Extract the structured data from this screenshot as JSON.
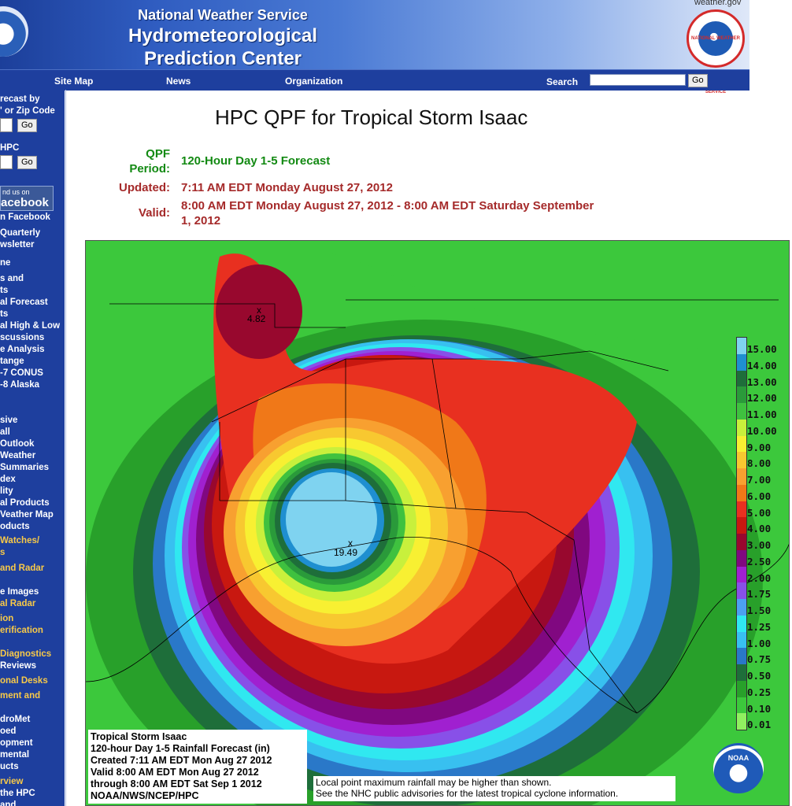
{
  "header": {
    "line1": "National Weather Service",
    "line2": "Hydrometeorological",
    "line3": "Prediction Center",
    "weather_gov_link": "weather.gov",
    "seal_text": "NATIONAL WEATHER SERVICE"
  },
  "nav": {
    "site_map": "Site Map",
    "news": "News",
    "organization": "Organization",
    "search_label": "Search",
    "search_value": "",
    "go": "Go"
  },
  "sidebar": {
    "forecast_zip_line1": "recast by",
    "forecast_zip_line2": "' or Zip Code",
    "go": "Go",
    "hpc_label": "HPC",
    "facebook_small": "nd us on",
    "facebook_big": "acebook",
    "items": [
      "n Facebook",
      "Quarterly",
      "wsletter",
      "ne",
      "s and",
      "ts",
      "al Forecast",
      "ts",
      "al High & Low",
      "scussions",
      "e Analysis",
      "tange",
      "-7 CONUS",
      "-8 Alaska",
      "sive",
      "all",
      "Outlook",
      "Weather",
      "Summaries",
      "dex",
      "lity",
      "al Products",
      "Veather Map",
      "oducts",
      "Watches/",
      "s",
      "and Radar",
      "e Images",
      "al Radar",
      "ion",
      "erification",
      "Diagnostics",
      "Reviews",
      "onal Desks",
      "ment and",
      "droMet",
      "oed",
      "opment",
      "mental",
      "ucts",
      "rview",
      "the HPC",
      "and"
    ]
  },
  "main": {
    "title": "HPC QPF for Tropical Storm Isaac",
    "qpf_period_label": "QPF Period:",
    "qpf_period_value": "120-Hour Day 1-5 Forecast",
    "updated_label": "Updated:",
    "updated_value": "7:11 AM EDT Monday August 27, 2012",
    "valid_label": "Valid:",
    "valid_value_line1": "8:00 AM EDT Monday August 27, 2012 - 8:00 AM EDT Saturday September",
    "valid_value_line2": "1, 2012"
  },
  "map": {
    "max1_label": "4.82",
    "max2_label": "19.49",
    "caption": [
      "Tropical Storm Isaac",
      "120-hour Day 1-5 Rainfall Forecast (in)",
      "Created 7:11 AM EDT Mon Aug 27 2012",
      "Valid 8:00 AM EDT Mon Aug 27 2012",
      "through 8:00 AM EDT Sat Sep 1 2012",
      "NOAA/NWS/NCEP/HPC"
    ],
    "note_line1": "Local point maximum rainfall may be higher than shown.",
    "note_line2": "See the NHC public advisories for the latest tropical cyclone information.",
    "noaa_seal_text": "NOAA",
    "legend": [
      {
        "label": "15.00",
        "color": "#7fd3f0"
      },
      {
        "label": "14.00",
        "color": "#1f8fd0"
      },
      {
        "label": "13.00",
        "color": "#1e6e3a"
      },
      {
        "label": "12.00",
        "color": "#2a9a3a"
      },
      {
        "label": "11.00",
        "color": "#3fc13f"
      },
      {
        "label": "10.00",
        "color": "#c8f03c"
      },
      {
        "label": "9.00",
        "color": "#f8f032"
      },
      {
        "label": "8.00",
        "color": "#f8c830"
      },
      {
        "label": "7.00",
        "color": "#f8a030"
      },
      {
        "label": "6.00",
        "color": "#f07818"
      },
      {
        "label": "5.00",
        "color": "#e83020"
      },
      {
        "label": "4.00",
        "color": "#c81810"
      },
      {
        "label": "3.00",
        "color": "#98082e"
      },
      {
        "label": "2.50",
        "color": "#800880"
      },
      {
        "label": "2.00",
        "color": "#a020d0"
      },
      {
        "label": "1.75",
        "color": "#8850e8"
      },
      {
        "label": "1.50",
        "color": "#4ca0f0"
      },
      {
        "label": "1.25",
        "color": "#30e8f0"
      },
      {
        "label": "1.00",
        "color": "#38c0f0"
      },
      {
        "label": "0.75",
        "color": "#2a78c8"
      },
      {
        "label": "0.50",
        "color": "#1e6e3a"
      },
      {
        "label": "0.25",
        "color": "#28a02a"
      },
      {
        "label": "0.10",
        "color": "#3cc83c"
      },
      {
        "label": "0.01",
        "color": "#90f060"
      }
    ]
  }
}
